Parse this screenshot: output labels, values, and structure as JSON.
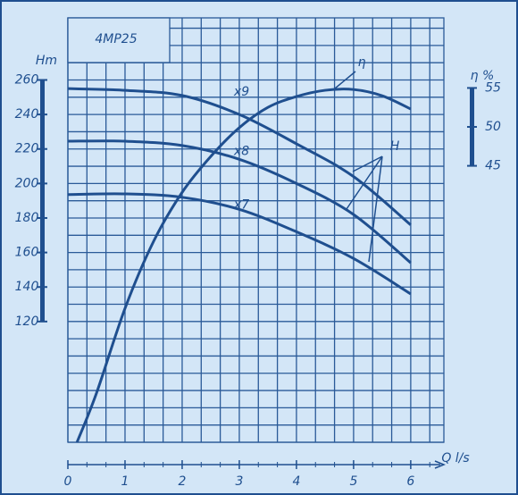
{
  "chart_data": {
    "type": "line",
    "title": "4MP25",
    "ylabel": "Hm",
    "y2label": "η %",
    "xlabel": "Q l/s",
    "xlim": [
      0,
      6.58
    ],
    "xticks": [
      0,
      1,
      2,
      3,
      4,
      5,
      6
    ],
    "ylim": [
      50,
      296
    ],
    "yticks": [
      120,
      140,
      160,
      180,
      200,
      220,
      240,
      260
    ],
    "y2lim": [
      9.5,
      64
    ],
    "y2ticks": [
      45,
      50,
      55
    ],
    "grid": true,
    "color": "#1f4f8f",
    "series": [
      {
        "name": "x9",
        "color": "#1f4f8f",
        "x": [
          0,
          1,
          2,
          3,
          4,
          5,
          6
        ],
        "values": [
          255,
          254,
          251,
          240,
          223,
          204,
          176
        ]
      },
      {
        "name": "x8",
        "color": "#1f4f8f",
        "x": [
          0,
          1,
          2,
          3,
          4,
          5,
          6
        ],
        "values": [
          224.5,
          224.5,
          222,
          214,
          200,
          182,
          154
        ]
      },
      {
        "name": "x7",
        "color": "#1f4f8f",
        "x": [
          0,
          1,
          2,
          3,
          4,
          5,
          6
        ],
        "values": [
          193.6,
          194,
          192,
          185,
          172,
          156.5,
          136
        ]
      },
      {
        "name": "η",
        "color": "#1f4f8f",
        "axis": "y2",
        "x": [
          0.16,
          0.5,
          1,
          1.5,
          2,
          2.5,
          3,
          3.5,
          4,
          4.5,
          5,
          5.5,
          6
        ],
        "values": [
          9.5,
          15.8,
          26.7,
          35.3,
          41.6,
          46.2,
          49.9,
          52.5,
          53.9,
          54.7,
          54.8,
          54,
          52.3
        ]
      }
    ],
    "annotations": [
      "H",
      "η"
    ]
  }
}
